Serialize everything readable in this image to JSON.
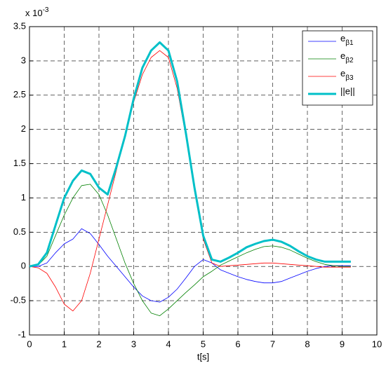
{
  "chart_data": {
    "type": "line",
    "exponent_label": "x 10-3",
    "xlabel": "t[s]",
    "x": [
      0,
      0.25,
      0.5,
      0.75,
      1,
      1.25,
      1.5,
      1.75,
      2,
      2.25,
      2.5,
      2.75,
      3,
      3.25,
      3.5,
      3.75,
      4,
      4.25,
      4.5,
      4.75,
      5,
      5.25,
      5.5,
      5.75,
      6,
      6.25,
      6.5,
      6.75,
      7,
      7.25,
      7.5,
      7.75,
      8,
      8.25,
      8.5,
      8.75,
      9,
      9.25
    ],
    "series": [
      {
        "name": "eβ1",
        "color": "#0000ff",
        "width": 0.8,
        "values": [
          0,
          0,
          0.05,
          0.2,
          0.33,
          0.4,
          0.55,
          0.48,
          0.32,
          0.15,
          0,
          -0.15,
          -0.3,
          -0.43,
          -0.5,
          -0.52,
          -0.45,
          -0.33,
          -0.17,
          0,
          0.1,
          0.05,
          -0.05,
          -0.1,
          -0.15,
          -0.19,
          -0.22,
          -0.24,
          -0.24,
          -0.22,
          -0.17,
          -0.12,
          -0.07,
          -0.03,
          0,
          0.01,
          0.01,
          0.01
        ]
      },
      {
        "name": "eβ2",
        "color": "#008000",
        "width": 0.8,
        "values": [
          0,
          0.02,
          0.15,
          0.45,
          0.75,
          1.0,
          1.18,
          1.2,
          1.05,
          0.75,
          0.4,
          0.05,
          -0.25,
          -0.5,
          -0.68,
          -0.72,
          -0.62,
          -0.5,
          -0.38,
          -0.27,
          -0.15,
          -0.07,
          0.02,
          0.08,
          0.14,
          0.2,
          0.25,
          0.29,
          0.3,
          0.28,
          0.24,
          0.18,
          0.12,
          0.07,
          0.03,
          0.01,
          0,
          0
        ]
      },
      {
        "name": "eβ3",
        "color": "#ff0000",
        "width": 0.8,
        "values": [
          0,
          -0.02,
          -0.1,
          -0.3,
          -0.55,
          -0.65,
          -0.5,
          -0.1,
          0.4,
          0.9,
          1.4,
          1.9,
          2.4,
          2.8,
          3.05,
          3.15,
          3.05,
          2.6,
          1.9,
          1.1,
          0.4,
          0.05,
          0,
          0.01,
          0.02,
          0.03,
          0.04,
          0.05,
          0.05,
          0.04,
          0.03,
          0.02,
          0.01,
          0,
          -0.01,
          -0.01,
          -0.01,
          -0.01
        ]
      },
      {
        "name": "||e||",
        "color": "#00c0c8",
        "width": 3,
        "values": [
          0,
          0.03,
          0.2,
          0.6,
          1.0,
          1.25,
          1.4,
          1.35,
          1.15,
          1.05,
          1.45,
          1.9,
          2.45,
          2.9,
          3.15,
          3.27,
          3.15,
          2.7,
          1.95,
          1.15,
          0.45,
          0.1,
          0.07,
          0.13,
          0.2,
          0.28,
          0.33,
          0.37,
          0.39,
          0.36,
          0.3,
          0.22,
          0.15,
          0.1,
          0.07,
          0.07,
          0.07,
          0.07
        ]
      }
    ],
    "xlim": [
      0,
      10
    ],
    "xticks": [
      0,
      1,
      2,
      3,
      4,
      5,
      6,
      7,
      8,
      9,
      10
    ],
    "ylim": [
      -1,
      3.5
    ],
    "yticks": [
      -1,
      -0.5,
      0,
      0.5,
      1,
      1.5,
      2,
      2.5,
      3,
      3.5
    ],
    "grid": true,
    "legend": "upper right"
  }
}
